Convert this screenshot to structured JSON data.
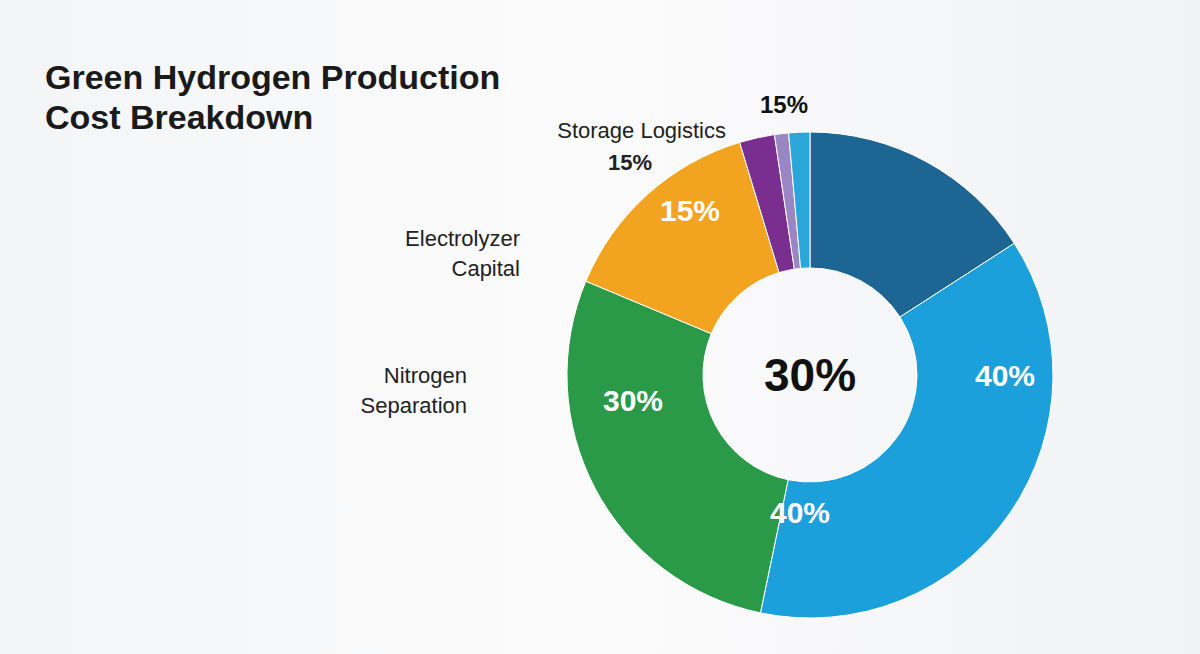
{
  "chart_data": {
    "type": "pie",
    "title": "Green Hydrogen Production Cost Breakdown",
    "categories": [
      null,
      null,
      null,
      null,
      null,
      null,
      null
    ],
    "values": [
      17,
      40,
      30,
      15,
      2.5,
      1,
      1.5
    ],
    "value_labels": [
      null,
      "40%",
      "30%",
      "15%",
      null,
      null,
      null
    ],
    "colors": [
      "#1d6694",
      "#1ba0dc",
      "#2b9a48",
      "#f2a31f",
      "#7a2e8f",
      "#9b86c4",
      "#2aa7d8"
    ],
    "data_labels": true,
    "annotations": [
      "40%",
      "30%",
      "15%",
      "Storage Logistics",
      "15%",
      "Electrolyzer Capital",
      "Nitrogen Separation"
    ]
  }
}
